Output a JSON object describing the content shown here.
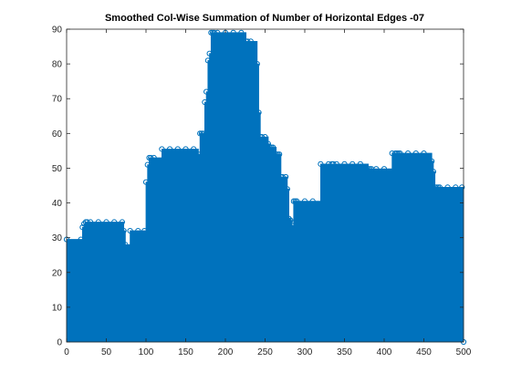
{
  "chart_data": {
    "type": "area",
    "title": "Smoothed Col-Wise Summation of Number of Horizontal Edges -07",
    "xlabel": "",
    "ylabel": "",
    "xlim": [
      0,
      500
    ],
    "ylim": [
      0,
      90
    ],
    "xticks": [
      0,
      50,
      100,
      150,
      200,
      250,
      300,
      350,
      400,
      450,
      500
    ],
    "yticks": [
      0,
      10,
      20,
      30,
      40,
      50,
      60,
      70,
      80,
      90
    ],
    "grid": false,
    "color": "#0072bd",
    "marker": "circle",
    "series": [
      {
        "x": [
          0,
          18,
          20,
          22,
          24,
          26,
          30,
          40,
          50,
          60,
          70,
          72,
          74,
          80,
          90,
          98,
          100,
          102,
          104,
          106,
          110,
          120,
          130,
          140,
          150,
          160,
          166,
          168,
          170,
          172,
          174,
          176,
          178,
          180,
          182,
          184,
          186,
          190,
          200,
          210,
          220,
          226,
          228,
          232,
          240,
          242,
          244,
          246,
          250,
          254,
          256,
          258,
          260,
          264,
          266,
          268,
          270,
          272,
          276,
          278,
          280,
          282,
          284,
          286,
          288,
          290,
          300,
          310,
          320,
          330,
          334,
          336,
          340,
          350,
          360,
          370,
          380,
          382,
          384,
          390,
          400,
          410,
          414,
          416,
          418,
          420,
          430,
          440,
          450,
          460,
          462,
          464,
          466,
          468,
          470,
          480,
          490,
          498,
          500
        ],
        "y": [
          29.5,
          29.5,
          33,
          34,
          34.5,
          34.5,
          34.5,
          34.5,
          34.5,
          34.5,
          34.5,
          32,
          28,
          32,
          32,
          32,
          46,
          51,
          53,
          53,
          53,
          55.5,
          55.5,
          55.5,
          55.5,
          55.5,
          54,
          60,
          60,
          60,
          69,
          72,
          81,
          83,
          89,
          89,
          89,
          89,
          89,
          89,
          89,
          86.5,
          86.5,
          86.5,
          80,
          66,
          59,
          59,
          59,
          57,
          56,
          56,
          56,
          54,
          54,
          54,
          47.5,
          47.5,
          47.5,
          44,
          35.5,
          35,
          33.5,
          40.5,
          40.5,
          40.5,
          40.5,
          40.5,
          51.2,
          51.2,
          51.2,
          51.2,
          51.2,
          51.2,
          51.2,
          51.2,
          49.8,
          49.8,
          49.8,
          49.8,
          49.8,
          54.3,
          54.3,
          54.3,
          54.3,
          54.3,
          54.3,
          54.3,
          54.3,
          52,
          49,
          44.5,
          44.5,
          44.5,
          44.5,
          44.5,
          44.5,
          44.5,
          0
        ]
      }
    ]
  }
}
